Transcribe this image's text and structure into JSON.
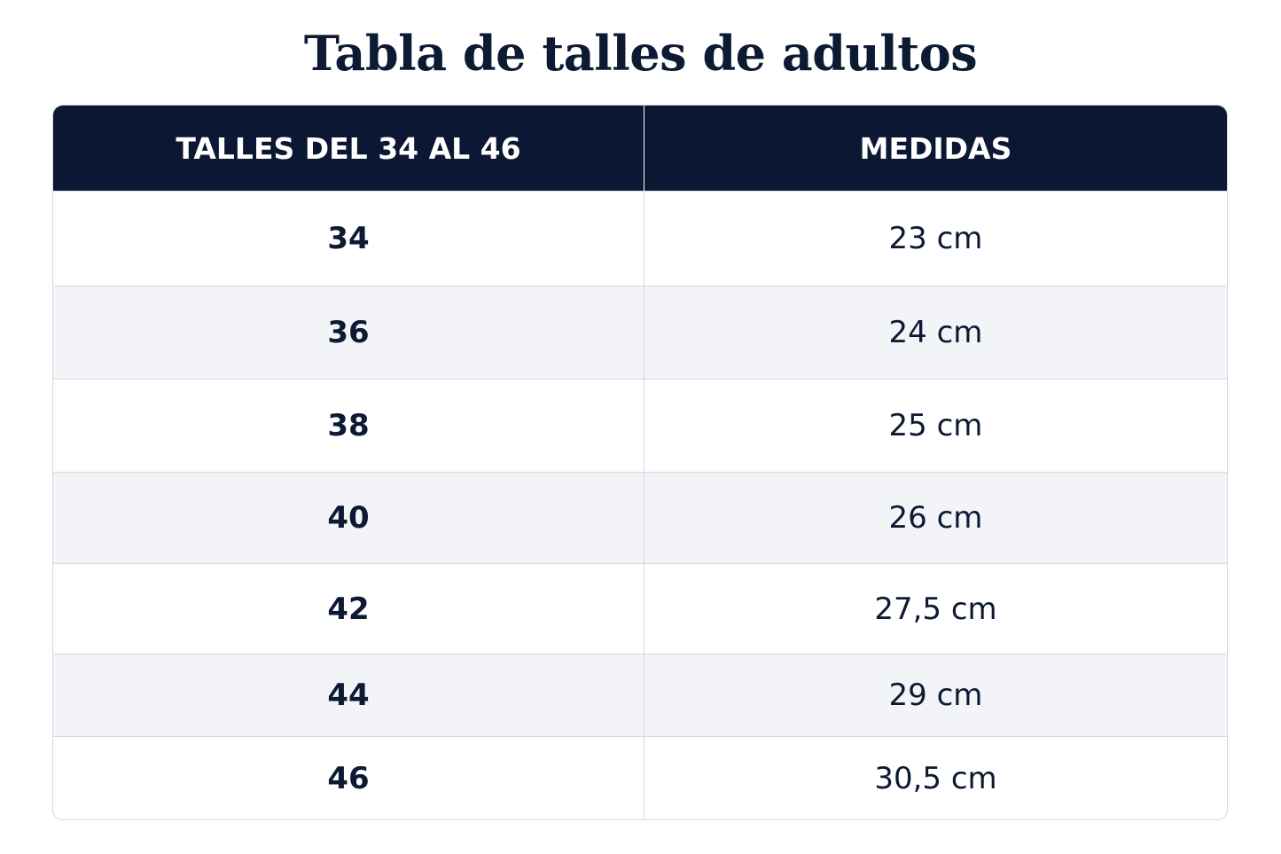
{
  "title": "Tabla de talles de adultos",
  "table": {
    "columns": [
      "TALLES DEL 34 AL 46",
      "MEDIDAS"
    ],
    "rows": [
      [
        "34",
        "23 cm"
      ],
      [
        "36",
        "24 cm"
      ],
      [
        "38",
        "25 cm"
      ],
      [
        "40",
        "26 cm"
      ],
      [
        "42",
        "27,5 cm"
      ],
      [
        "44",
        "29 cm"
      ],
      [
        "46",
        "30,5 cm"
      ]
    ]
  }
}
